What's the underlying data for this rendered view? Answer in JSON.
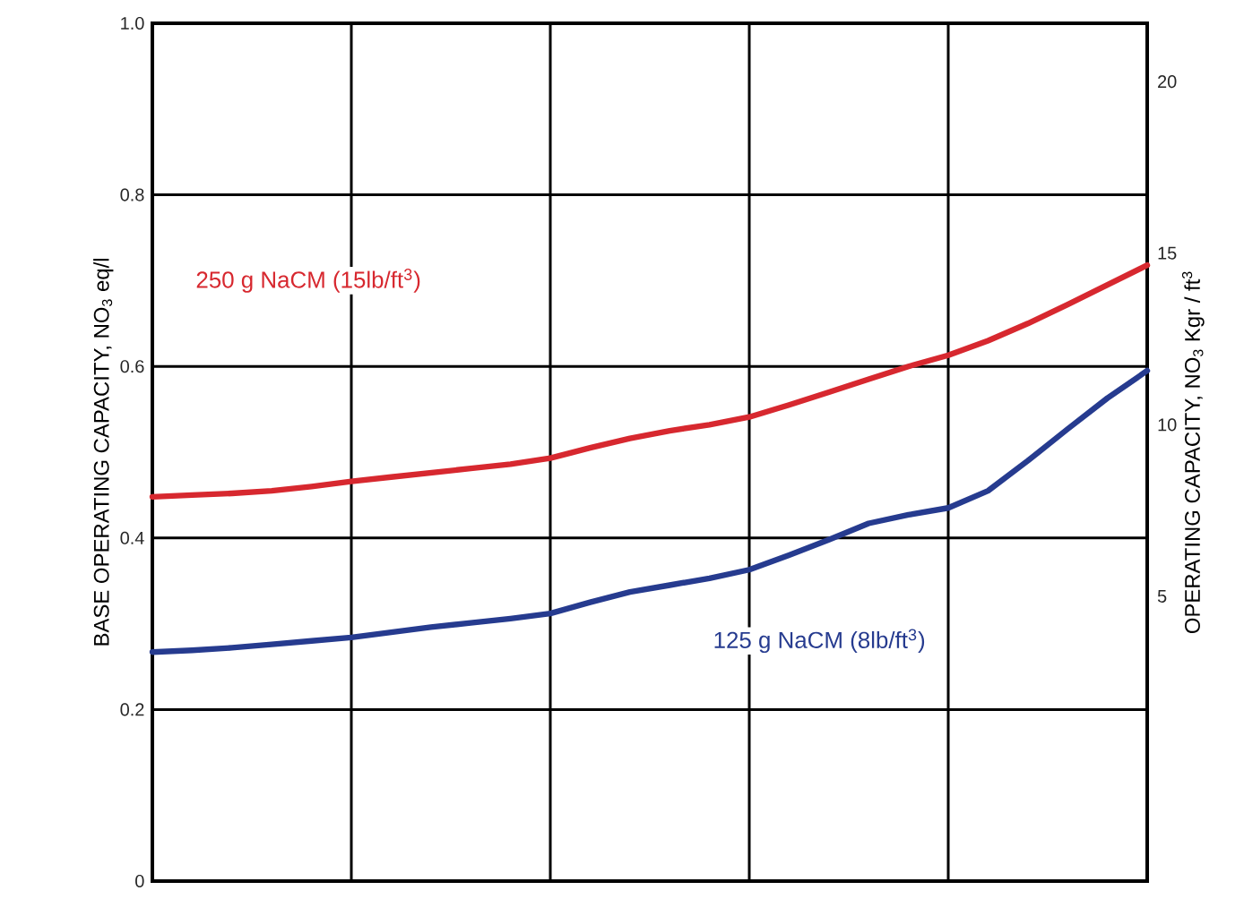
{
  "chart_data": {
    "type": "line",
    "ylabel": "BASE OPERATING CAPACITY, NO$_{3}$ eq/l",
    "y2label": "OPERATING CAPACITY, NO$_{3}$ Kgr / ft$^{3}$",
    "categories": [
      null,
      null,
      null,
      null,
      null,
      null,
      null,
      null,
      null,
      null,
      null,
      null,
      null,
      null,
      null,
      null,
      null,
      null,
      null,
      null,
      null,
      null,
      null,
      null,
      null,
      null
    ],
    "ylim": [
      0,
      1.0
    ],
    "yticks": [
      0,
      0.2,
      0.4,
      0.6,
      0.8,
      {
        "value": 1.0,
        "label": "1.0"
      }
    ],
    "y2lim": [
      -3.3,
      21.7
    ],
    "y2ticks": [
      5,
      10,
      15,
      20
    ],
    "grid": true,
    "tick_labels": "y",
    "marker": "none",
    "line_style": "solid",
    "series": [
      {
        "name": "250 g NaCM (15lb/ft$^{3}$)",
        "color": "#d7282f",
        "values": [
          0.448,
          0.45,
          0.452,
          0.455,
          0.46,
          0.466,
          0.471,
          0.476,
          0.481,
          0.486,
          0.493,
          0.505,
          0.516,
          0.525,
          0.532,
          0.541,
          0.555,
          0.57,
          0.585,
          0.6,
          0.613,
          0.63,
          0.65,
          0.672,
          0.695,
          0.718
        ]
      },
      {
        "name": "125 g NaCM (8lb/ft$^{3}$)",
        "color": "#263b8f",
        "values": [
          0.267,
          0.269,
          0.272,
          0.276,
          0.28,
          0.284,
          0.29,
          0.296,
          0.301,
          0.306,
          0.312,
          0.325,
          0.337,
          0.345,
          0.353,
          0.363,
          0.38,
          0.398,
          0.417,
          0.427,
          0.435,
          0.455,
          0.49,
          0.527,
          0.563,
          0.595
        ]
      }
    ]
  }
}
